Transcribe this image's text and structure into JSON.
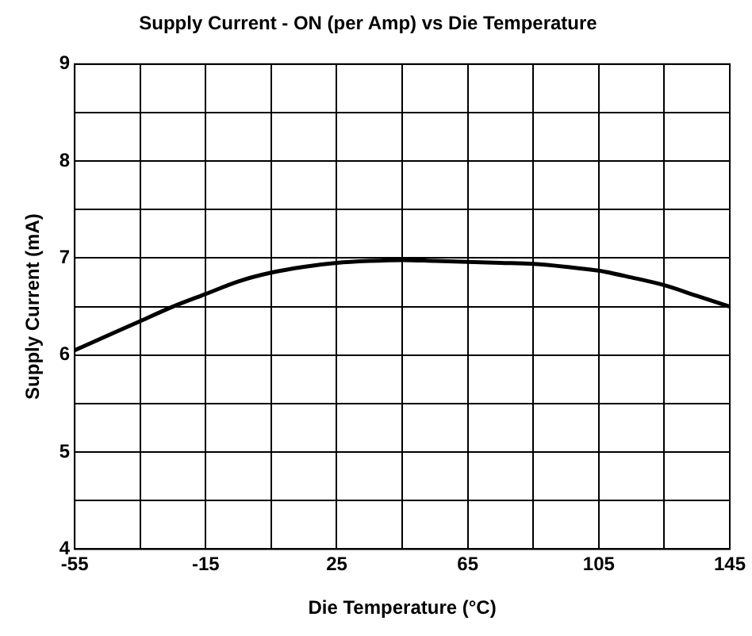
{
  "chart_data": {
    "type": "line",
    "title": "Supply Current - ON (per Amp) vs Die Temperature",
    "xlabel": "Die Temperature (°C)",
    "ylabel": "Supply Current (mA)",
    "x": [
      -55,
      -45,
      -35,
      -25,
      -15,
      -5,
      5,
      15,
      25,
      35,
      45,
      55,
      65,
      75,
      85,
      95,
      105,
      115,
      125,
      135,
      145
    ],
    "series": [
      {
        "color": "#000000",
        "values": [
          6.05,
          6.2,
          6.35,
          6.5,
          6.63,
          6.76,
          6.85,
          6.91,
          6.95,
          6.97,
          6.98,
          6.97,
          6.96,
          6.95,
          6.94,
          6.91,
          6.87,
          6.8,
          6.72,
          6.61,
          6.5
        ]
      }
    ],
    "xlim": [
      -55,
      145
    ],
    "ylim": [
      4,
      9
    ],
    "xticks": [
      -55,
      {
        "value": -35,
        "label": null
      },
      -15,
      {
        "value": 5,
        "label": null
      },
      25,
      {
        "value": 45,
        "label": null
      },
      65,
      {
        "value": 85,
        "label": null
      },
      105,
      {
        "value": 125,
        "label": null
      },
      145
    ],
    "yticks": [
      4,
      {
        "value": 4.5,
        "label": null
      },
      5,
      {
        "value": 5.5,
        "label": null
      },
      6,
      {
        "value": 6.5,
        "label": null
      },
      7,
      {
        "value": 7.5,
        "label": null
      },
      8,
      {
        "value": 8.5,
        "label": null
      },
      9
    ],
    "grid": true,
    "legend": false,
    "marker": "none",
    "line_style": "solid"
  }
}
